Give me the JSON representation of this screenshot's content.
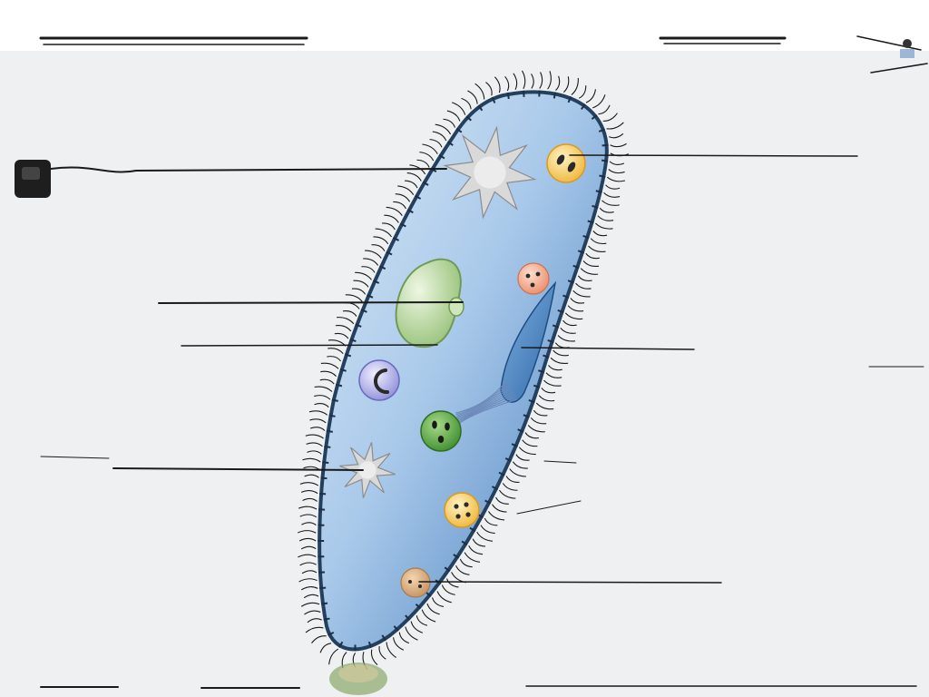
{
  "diagram": {
    "subject": "paramecium",
    "labels": [],
    "colors": {
      "background_top": "#ffffff",
      "background_panel": "#eef0f2",
      "cell_fill_light": "#cfe2f5",
      "cell_fill_dark": "#4f86c2",
      "membrane": "#24405f",
      "cilia": "#1a1a1a",
      "macronucleus": "#a9cf8d",
      "contractile_vacuole": "#d9d9d9",
      "oral_groove": "#3f78b8",
      "leader_line": "#1a1a1a"
    },
    "organelles": [
      {
        "name": "contractile-vacuole-top",
        "icon": "star-vacuole"
      },
      {
        "name": "food-vacuole-yellow-top",
        "icon": "food-vacuole"
      },
      {
        "name": "food-vacuole-pink",
        "icon": "food-vacuole"
      },
      {
        "name": "macronucleus",
        "icon": "bean-nucleus"
      },
      {
        "name": "micronucleus",
        "icon": "small-nucleus"
      },
      {
        "name": "food-vacuole-purple",
        "icon": "crescent-vacuole"
      },
      {
        "name": "oral-groove",
        "icon": "groove"
      },
      {
        "name": "food-vacuole-green",
        "icon": "food-vacuole"
      },
      {
        "name": "contractile-vacuole-bottom",
        "icon": "star-vacuole"
      },
      {
        "name": "food-vacuole-yellow-bottom",
        "icon": "food-vacuole"
      },
      {
        "name": "anal-pore",
        "icon": "small-vacuole"
      }
    ]
  }
}
